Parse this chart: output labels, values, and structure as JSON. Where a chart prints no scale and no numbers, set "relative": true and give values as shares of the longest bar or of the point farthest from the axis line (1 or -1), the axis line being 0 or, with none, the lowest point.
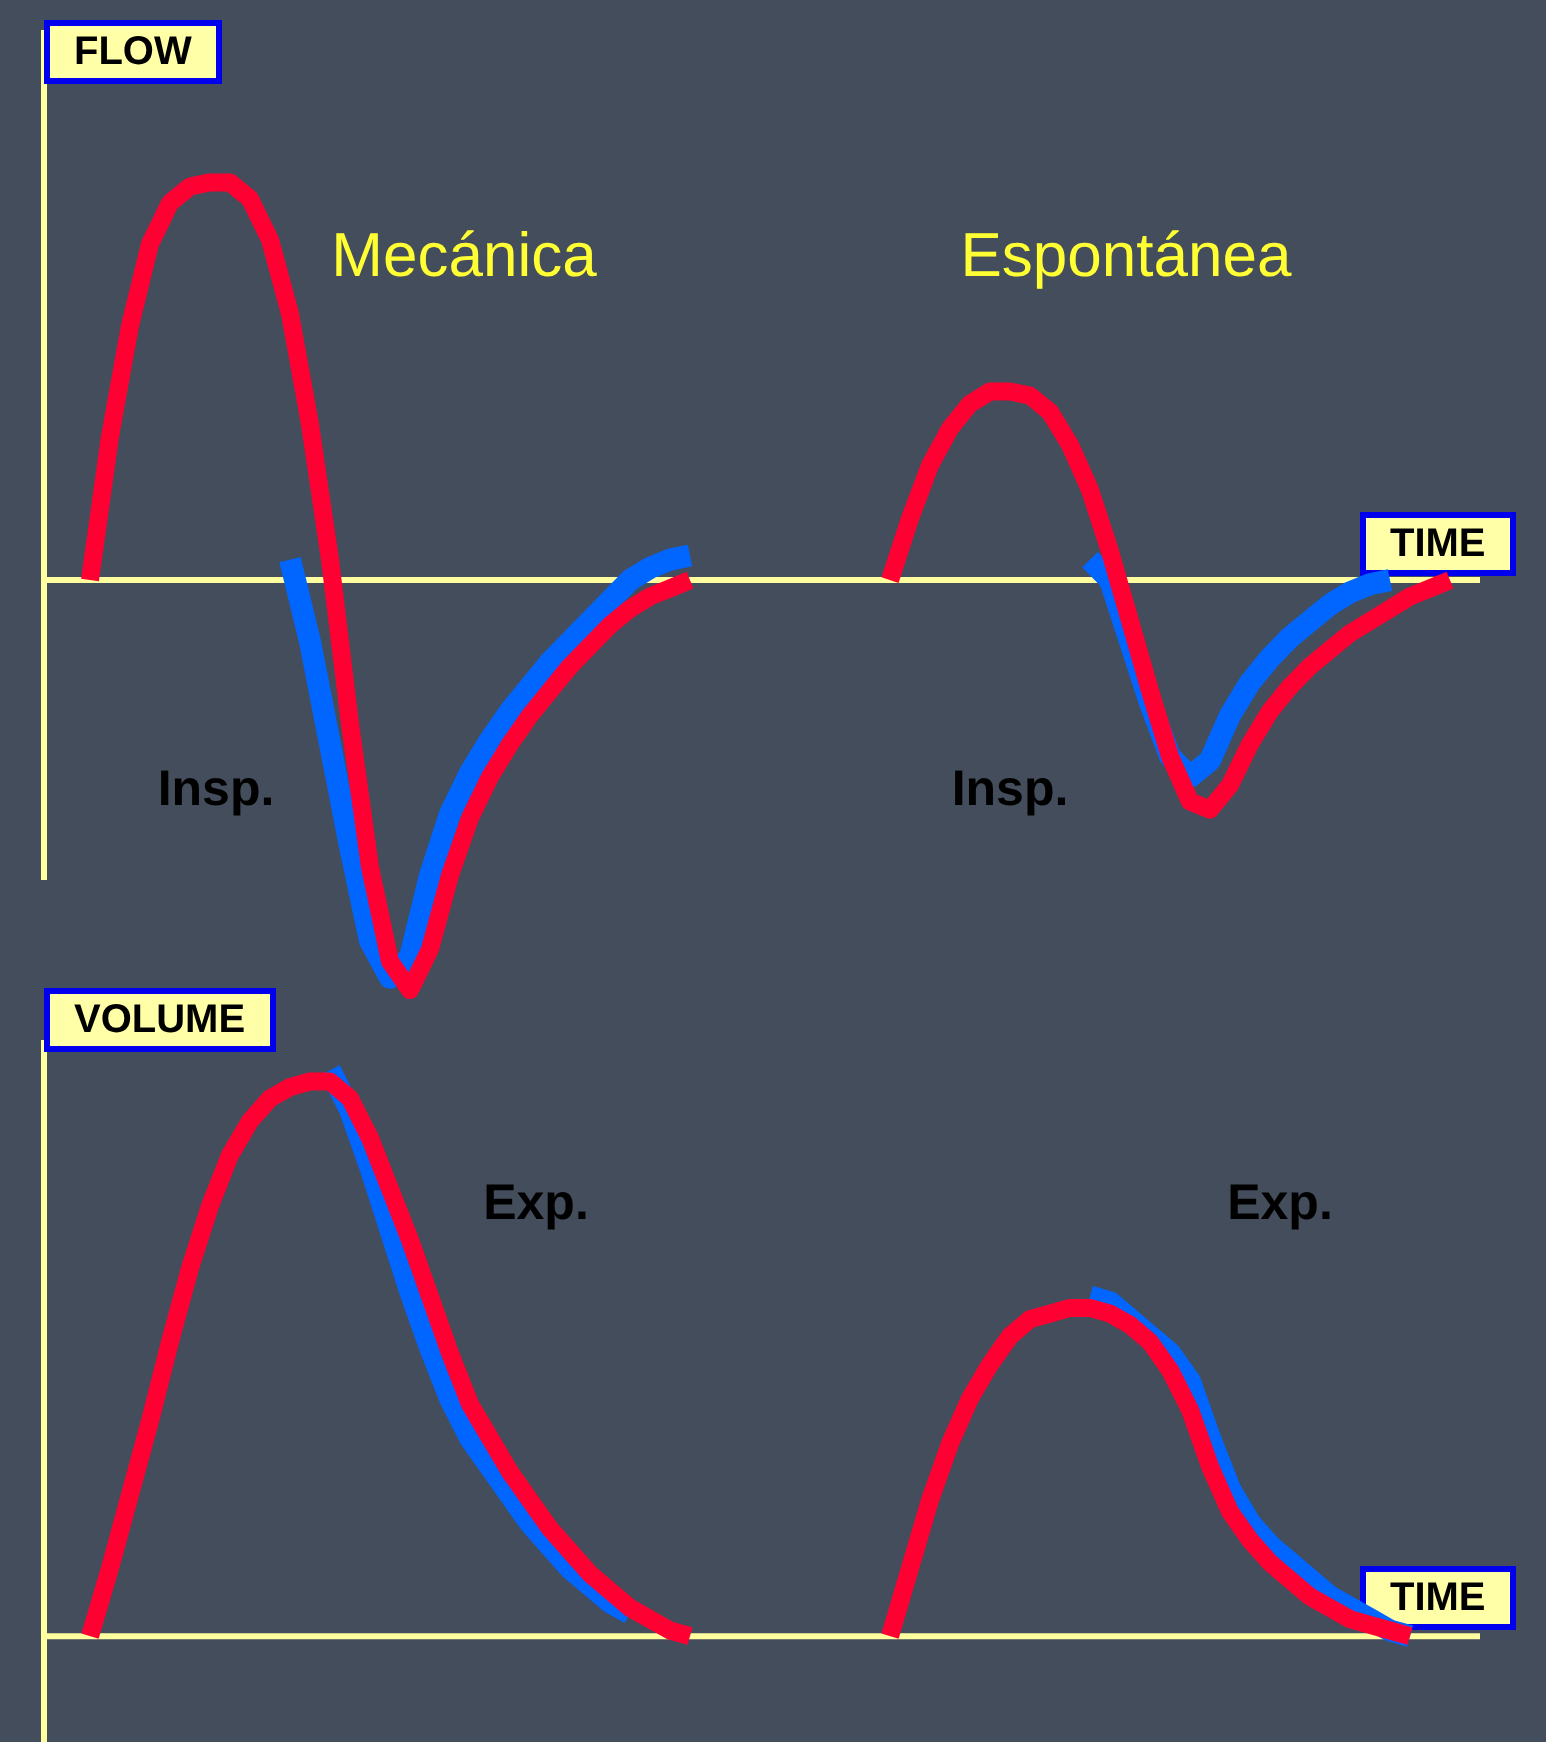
{
  "chart_data": [
    {
      "type": "line",
      "relative": true,
      "ylabel": "FLOW",
      "xlabel": "TIME",
      "tick_labels": false,
      "marker": "none",
      "line_style": "solid",
      "annotations": [
        "Mecánica",
        "Espontánea",
        "Insp.",
        "Insp."
      ],
      "ref_lines": [
        {
          "axis": "y",
          "value": 0,
          "color": "#ffffa0"
        }
      ],
      "categories": [
        null,
        null,
        null,
        null,
        null,
        null,
        null,
        null,
        null,
        null,
        null,
        null,
        null,
        null,
        null,
        null,
        null,
        null,
        null,
        null,
        null,
        null,
        null,
        null,
        null,
        null,
        null,
        null,
        null,
        null,
        null,
        null,
        null,
        null,
        null,
        null,
        null,
        null,
        null,
        null,
        null,
        null,
        null,
        null,
        null,
        null,
        null,
        null,
        null,
        null,
        null,
        null,
        null,
        null,
        null,
        null,
        null,
        null,
        null,
        null,
        null,
        null,
        null,
        null,
        null,
        null,
        null,
        null,
        null,
        null,
        null
      ],
      "series": [
        {
          "color": "#ff0033",
          "values": [
            0,
            0.35,
            0.62,
            0.82,
            0.92,
            0.96,
            0.97,
            0.97,
            0.93,
            0.83,
            0.65,
            0.38,
            0.05,
            -0.35,
            -0.7,
            -0.93,
            -1.0,
            -0.9,
            -0.72,
            -0.58,
            -0.48,
            -0.4,
            -0.33,
            -0.27,
            -0.21,
            -0.16,
            -0.11,
            -0.07,
            -0.04,
            -0.02,
            0,
            null,
            null,
            null,
            null,
            null,
            null,
            null,
            null,
            null,
            null,
            null,
            null,
            null,
            null,
            null,
            null,
            null,
            null,
            null,
            null,
            null,
            null,
            null,
            null,
            null,
            null,
            null,
            null,
            null,
            null,
            null,
            null,
            null,
            null,
            null,
            null,
            null,
            null,
            null,
            null
          ]
        },
        {
          "color": "#ff0033",
          "values": [
            null,
            null,
            null,
            null,
            null,
            null,
            null,
            null,
            null,
            null,
            null,
            null,
            null,
            null,
            null,
            null,
            null,
            null,
            null,
            null,
            null,
            null,
            null,
            null,
            null,
            null,
            null,
            null,
            null,
            null,
            null,
            null,
            null,
            null,
            null,
            null,
            null,
            null,
            null,
            null,
            0,
            0.15,
            0.28,
            0.37,
            0.43,
            0.46,
            0.46,
            0.45,
            0.41,
            0.33,
            0.22,
            0.07,
            -0.1,
            -0.27,
            -0.43,
            -0.54,
            -0.56,
            -0.5,
            -0.4,
            -0.32,
            -0.26,
            -0.21,
            -0.17,
            -0.13,
            -0.1,
            -0.07,
            -0.04,
            -0.02,
            0,
            null,
            null
          ]
        },
        {
          "color": "#0066ff",
          "values": [
            null,
            null,
            null,
            null,
            null,
            null,
            null,
            null,
            null,
            null,
            0.05,
            -0.15,
            -0.4,
            -0.65,
            -0.88,
            -0.97,
            -0.92,
            -0.72,
            -0.57,
            -0.47,
            -0.39,
            -0.32,
            -0.26,
            -0.2,
            -0.15,
            -0.1,
            -0.05,
            0,
            0.03,
            0.05,
            0.06,
            null,
            null,
            null,
            null,
            null,
            null,
            null,
            null,
            null,
            null,
            null,
            null,
            null,
            null,
            null,
            null,
            null,
            null,
            null,
            null,
            null,
            null,
            null,
            null,
            null,
            null,
            null,
            null,
            null,
            null,
            null,
            null,
            null,
            null,
            null,
            null,
            null,
            null,
            null,
            null
          ]
        },
        {
          "color": "#0066ff",
          "values": [
            null,
            null,
            null,
            null,
            null,
            null,
            null,
            null,
            null,
            null,
            null,
            null,
            null,
            null,
            null,
            null,
            null,
            null,
            null,
            null,
            null,
            null,
            null,
            null,
            null,
            null,
            null,
            null,
            null,
            null,
            null,
            null,
            null,
            null,
            null,
            null,
            null,
            null,
            null,
            null,
            null,
            null,
            null,
            null,
            null,
            null,
            null,
            null,
            null,
            null,
            0.05,
            0,
            -0.15,
            -0.3,
            -0.43,
            -0.48,
            -0.44,
            -0.33,
            -0.25,
            -0.19,
            -0.14,
            -0.1,
            -0.06,
            -0.03,
            -0.01,
            0,
            null,
            null,
            null,
            null,
            null
          ]
        }
      ]
    },
    {
      "type": "line",
      "relative": true,
      "ylabel": "VOLUME",
      "xlabel": "TIME",
      "tick_labels": false,
      "marker": "none",
      "line_style": "solid",
      "annotations": [
        "Exp.",
        "Exp."
      ],
      "categories": [
        null,
        null,
        null,
        null,
        null,
        null,
        null,
        null,
        null,
        null,
        null,
        null,
        null,
        null,
        null,
        null,
        null,
        null,
        null,
        null,
        null,
        null,
        null,
        null,
        null,
        null,
        null,
        null,
        null,
        null,
        null,
        null,
        null,
        null,
        null,
        null,
        null,
        null,
        null,
        null,
        null,
        null,
        null,
        null,
        null,
        null,
        null,
        null,
        null,
        null,
        null,
        null,
        null,
        null,
        null,
        null,
        null,
        null,
        null,
        null,
        null,
        null,
        null,
        null,
        null,
        null,
        null,
        null,
        null,
        null,
        null
      ],
      "series": [
        {
          "color": "#ff0033",
          "values": [
            0,
            0.12,
            0.25,
            0.38,
            0.52,
            0.65,
            0.76,
            0.85,
            0.91,
            0.95,
            0.97,
            0.98,
            0.98,
            0.95,
            0.88,
            0.79,
            0.7,
            0.6,
            0.5,
            0.41,
            0.35,
            0.29,
            0.24,
            0.19,
            0.15,
            0.11,
            0.08,
            0.05,
            0.03,
            0.01,
            0,
            null,
            null,
            null,
            null,
            null,
            null,
            null,
            null,
            null,
            null,
            null,
            null,
            null,
            null,
            null,
            null,
            null,
            null,
            null,
            null,
            null,
            null,
            null,
            null,
            null,
            null,
            null,
            null,
            null,
            null,
            null,
            null,
            null,
            null,
            null,
            null,
            null,
            null,
            null,
            null
          ]
        },
        {
          "color": "#ff0033",
          "values": [
            null,
            null,
            null,
            null,
            null,
            null,
            null,
            null,
            null,
            null,
            null,
            null,
            null,
            null,
            null,
            null,
            null,
            null,
            null,
            null,
            null,
            null,
            null,
            null,
            null,
            null,
            null,
            null,
            null,
            null,
            null,
            null,
            null,
            null,
            null,
            null,
            null,
            null,
            null,
            null,
            0,
            0.12,
            0.24,
            0.34,
            0.42,
            0.48,
            0.53,
            0.56,
            0.57,
            0.58,
            0.58,
            0.57,
            0.55,
            0.52,
            0.47,
            0.4,
            0.3,
            0.22,
            0.17,
            0.13,
            0.1,
            0.07,
            0.05,
            0.03,
            0.02,
            0.01,
            0,
            null,
            null,
            null,
            null
          ]
        },
        {
          "color": "#0066ff",
          "values": [
            null,
            null,
            null,
            null,
            null,
            null,
            null,
            null,
            null,
            null,
            null,
            null,
            1.0,
            0.93,
            0.83,
            0.72,
            0.61,
            0.51,
            0.42,
            0.35,
            0.3,
            0.25,
            0.2,
            0.16,
            0.12,
            0.09,
            0.06,
            0.04,
            null,
            null,
            null,
            null,
            null,
            null,
            null,
            null,
            null,
            null,
            null,
            null,
            null,
            null,
            null,
            null,
            null,
            null,
            null,
            null,
            null,
            null,
            null,
            null,
            null,
            null,
            null,
            null,
            null,
            null,
            null,
            null,
            null,
            null,
            null,
            null,
            null,
            null,
            null,
            null,
            null,
            null,
            null
          ]
        },
        {
          "color": "#0066ff",
          "values": [
            null,
            null,
            null,
            null,
            null,
            null,
            null,
            null,
            null,
            null,
            null,
            null,
            null,
            null,
            null,
            null,
            null,
            null,
            null,
            null,
            null,
            null,
            null,
            null,
            null,
            null,
            null,
            null,
            null,
            null,
            null,
            null,
            null,
            null,
            null,
            null,
            null,
            null,
            null,
            null,
            null,
            null,
            null,
            null,
            null,
            null,
            null,
            null,
            null,
            null,
            0.6,
            0.59,
            0.56,
            0.53,
            0.5,
            0.45,
            0.35,
            0.26,
            0.2,
            0.16,
            0.13,
            0.1,
            0.07,
            0.05,
            0.03,
            0.01,
            0,
            null,
            null,
            null,
            null
          ]
        }
      ]
    }
  ]
}
